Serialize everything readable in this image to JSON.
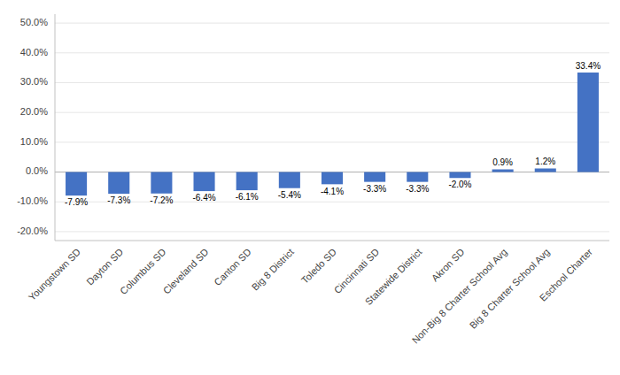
{
  "chart_data": {
    "type": "bar",
    "categories": [
      "Youngstown SD",
      "Dayton SD",
      "Columbus SD",
      "Cleveland SD",
      "Canton SD",
      "Big 8 District",
      "Toledo SD",
      "Cincinnati SD",
      "Statewide District",
      "Akron SD",
      "Non-Big 8 Charter School Avg",
      "Big 8 Charter School Avg",
      "Eschool Charter"
    ],
    "values": [
      -7.9,
      -7.3,
      -7.2,
      -6.4,
      -6.1,
      -5.4,
      -4.1,
      -3.3,
      -3.3,
      -2.0,
      0.9,
      1.2,
      33.4
    ],
    "value_labels": [
      "-7.9%",
      "-7.3%",
      "-7.2%",
      "-6.4%",
      "-6.1%",
      "-5.4%",
      "-4.1%",
      "-3.3%",
      "-3.3%",
      "-2.0%",
      "0.9%",
      "1.2%",
      "33.4%"
    ],
    "data_labels": true,
    "color": "#4472C4",
    "ylim": [
      -23,
      53
    ],
    "yticks": [
      {
        "value": -20.0,
        "label": "-20.0%"
      },
      {
        "value": -10.0,
        "label": "-10.0%"
      },
      {
        "value": 0.0,
        "label": "0.0%"
      },
      {
        "value": 10.0,
        "label": "10.0%"
      },
      {
        "value": 20.0,
        "label": "20.0%"
      },
      {
        "value": 30.0,
        "label": "30.0%"
      },
      {
        "value": 40.0,
        "label": "40.0%"
      },
      {
        "value": 50.0,
        "label": "50.0%"
      }
    ],
    "grid": true
  }
}
